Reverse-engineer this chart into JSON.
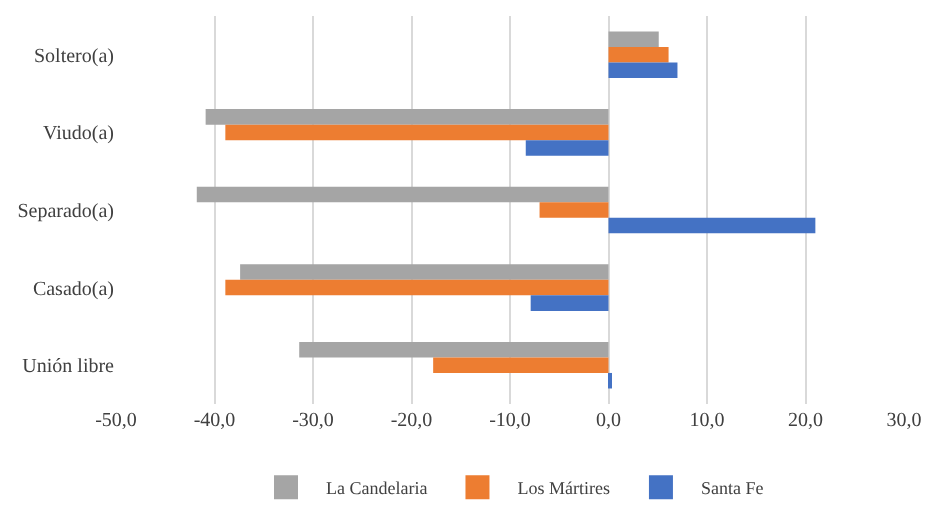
{
  "chart_data": {
    "type": "bar",
    "orientation": "horizontal",
    "categories": [
      "Soltero(a)",
      "Viudo(a)",
      "Separado(a)",
      "Casado(a)",
      "Unión libre"
    ],
    "series": [
      {
        "name": "La Candelaria",
        "color": "#a5a5a5",
        "values": [
          5.1,
          -40.9,
          -41.8,
          -37.4,
          -31.4
        ]
      },
      {
        "name": "Los Mártires",
        "color": "#ed7d31",
        "values": [
          6.1,
          -38.9,
          -7.0,
          -38.9,
          -17.8
        ]
      },
      {
        "name": "Santa Fe",
        "color": "#4472c4",
        "values": [
          7.0,
          -8.4,
          21.0,
          -7.9,
          0.3
        ]
      }
    ],
    "xlim": [
      -50,
      30
    ],
    "xticks": [
      {
        "value": -50,
        "label": "-50,0"
      },
      {
        "value": -40,
        "label": "-40,0"
      },
      {
        "value": -30,
        "label": "-30,0"
      },
      {
        "value": -20,
        "label": "-20,0"
      },
      {
        "value": -10,
        "label": "-10,0"
      },
      {
        "value": 0,
        "label": "0,0"
      },
      {
        "value": 10,
        "label": "10,0"
      },
      {
        "value": 20,
        "label": "20,0"
      },
      {
        "value": 30,
        "label": "30,0"
      }
    ],
    "grid": "x",
    "legend": "bottom"
  }
}
